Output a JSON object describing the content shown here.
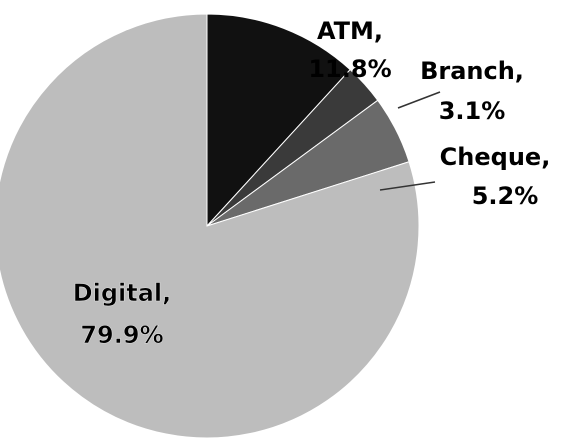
{
  "chart_data": {
    "type": "pie",
    "categories": [
      "ATM,",
      "Branch,",
      "Cheque,",
      "Digital,"
    ],
    "values": [
      11.8,
      3.1,
      5.2,
      79.9
    ],
    "value_labels": [
      "11.8%",
      "3.1%",
      "5.2%",
      "79.9%"
    ],
    "colors": [
      "#111111",
      "#3a3a3a",
      "#6a6a6a",
      "#bdbdbd"
    ],
    "start_angle": 0,
    "direction": "clockwise"
  }
}
